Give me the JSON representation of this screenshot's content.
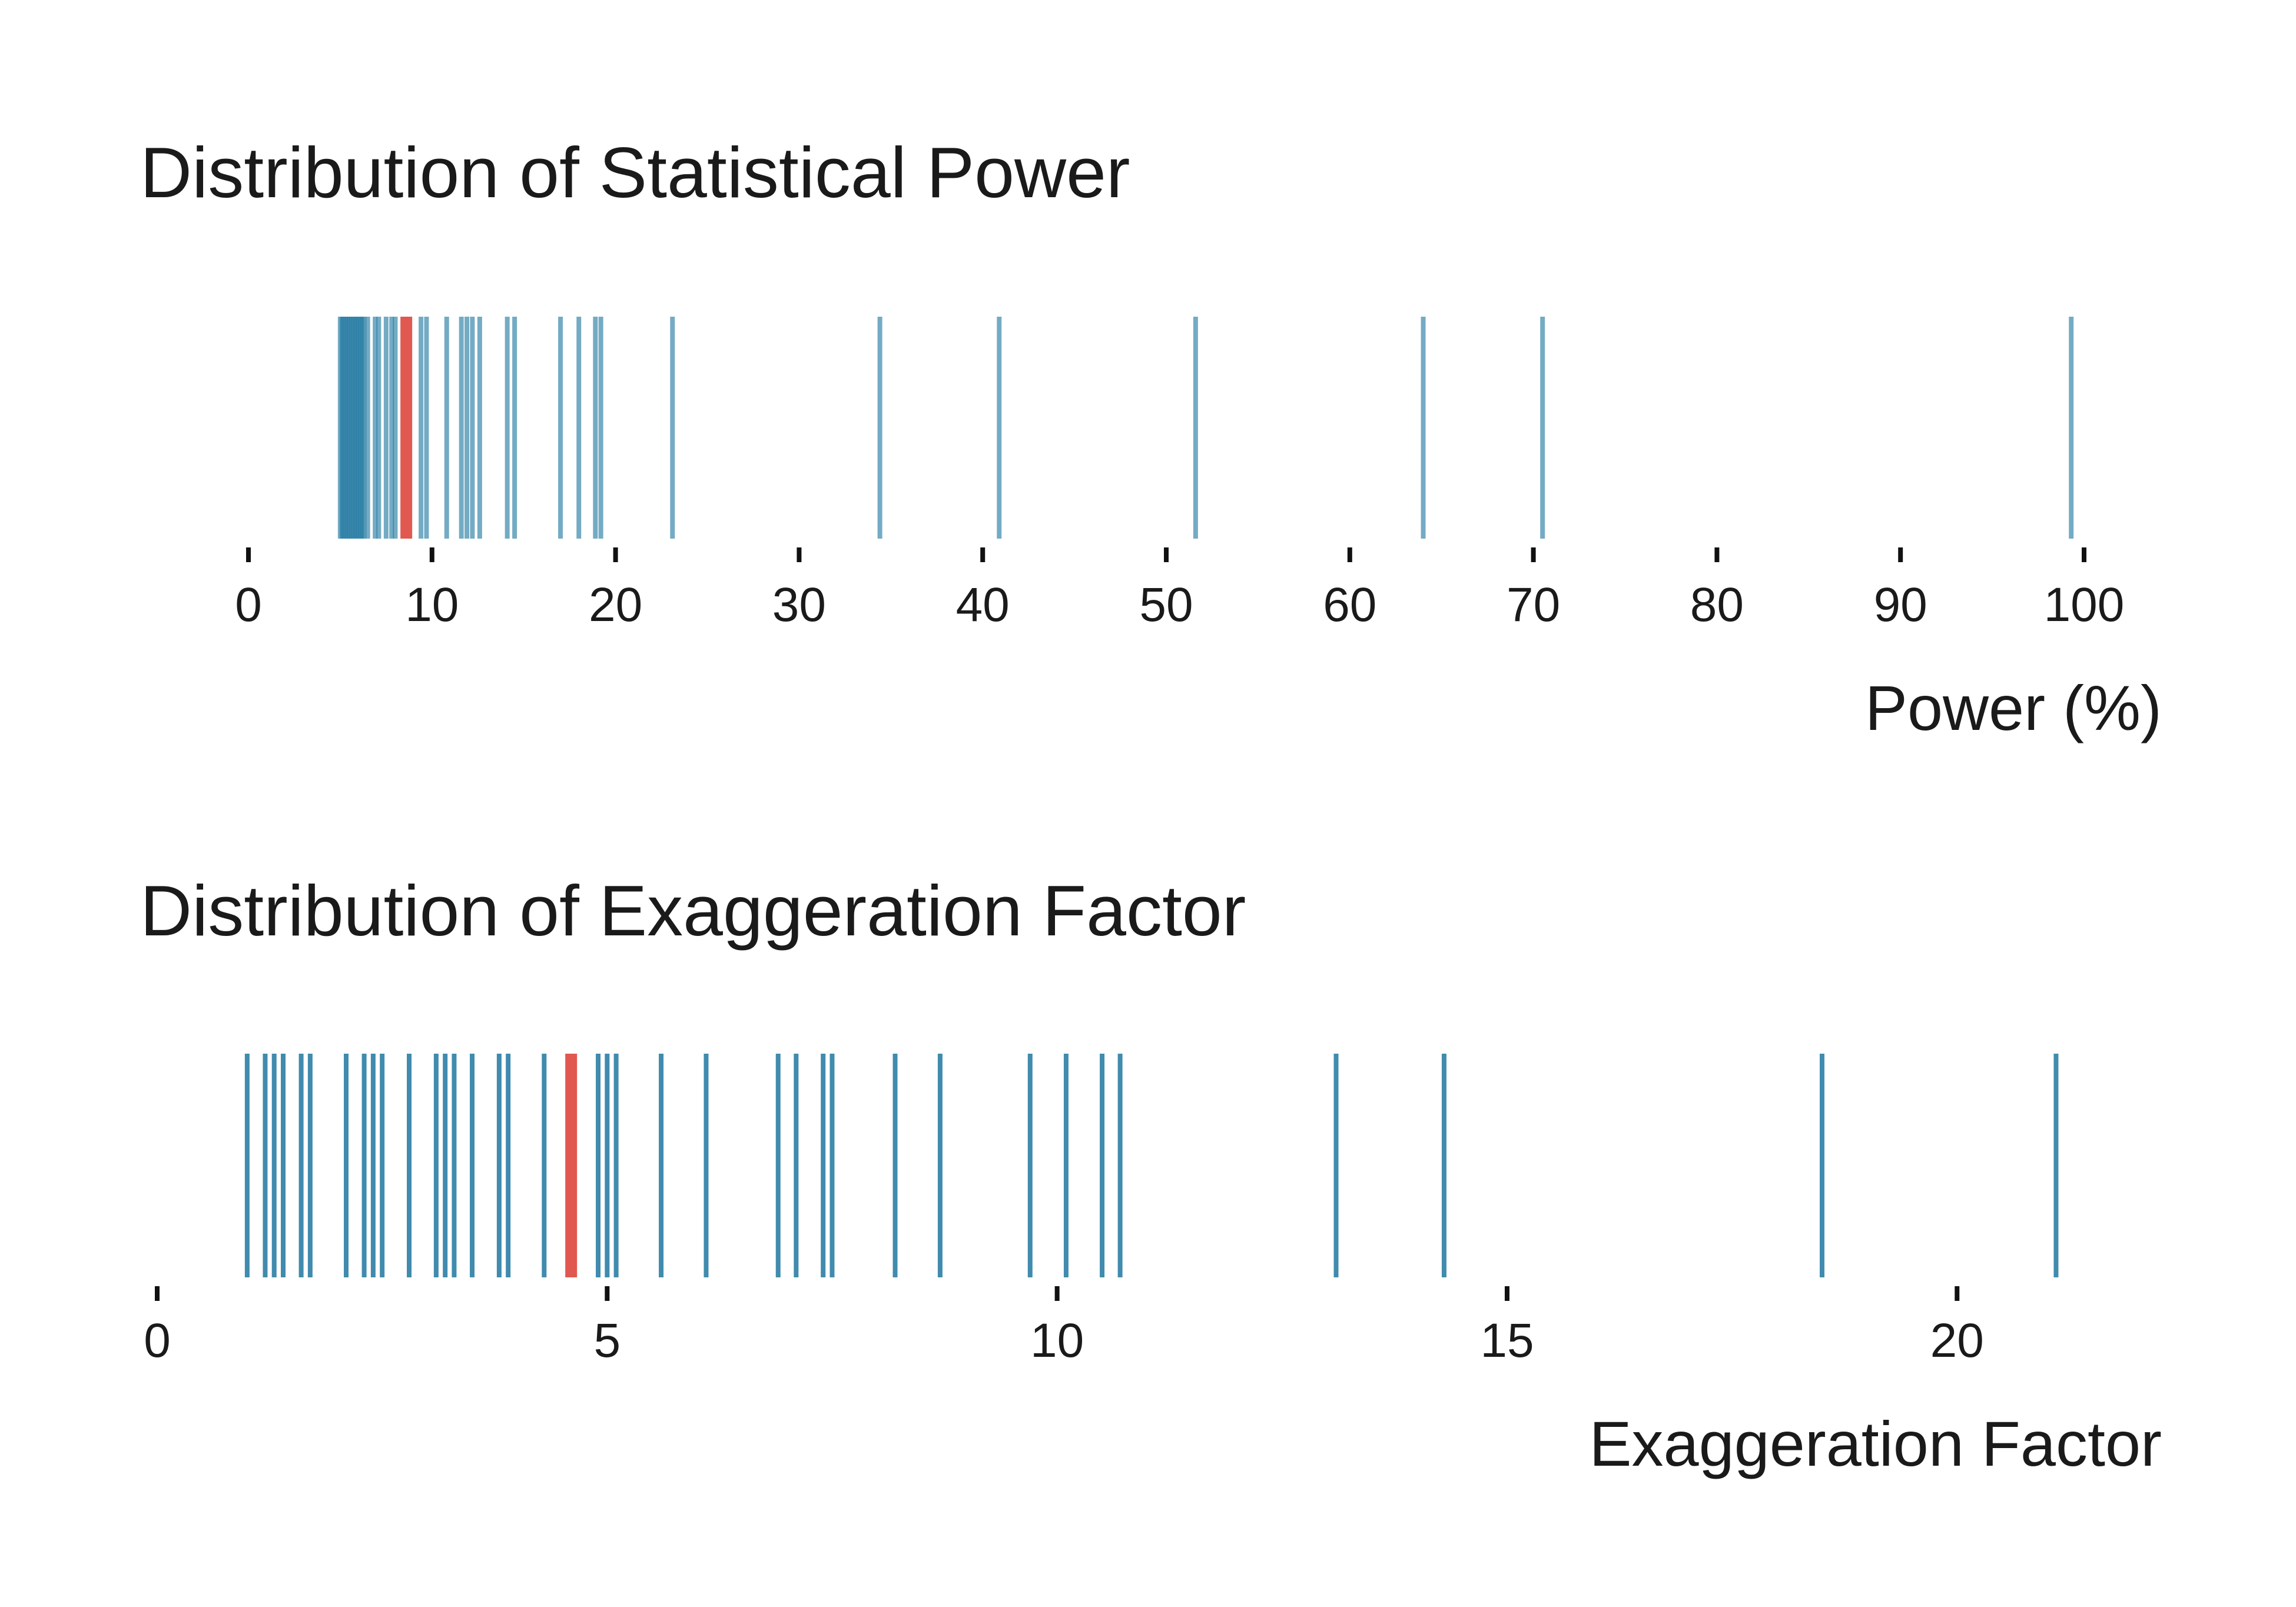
{
  "chart_data": [
    {
      "type": "rug",
      "title": "Distribution of Statistical Power",
      "xlabel": "Power (%)",
      "xlim": [
        0,
        100
      ],
      "xticks": [
        0,
        10,
        20,
        30,
        40,
        50,
        60,
        70,
        80,
        90,
        100
      ],
      "color": "#1f77a0",
      "highlight_color": "#e0584f",
      "values": [
        5.0,
        5.1,
        5.2,
        5.3,
        5.4,
        5.5,
        5.6,
        5.7,
        5.8,
        5.9,
        6.0,
        6.1,
        6.2,
        6.3,
        6.5,
        6.9,
        7.1,
        7.5,
        7.8,
        8.0,
        9.4,
        9.7,
        10.8,
        11.6,
        11.9,
        12.2,
        12.6,
        14.1,
        14.5,
        17.0,
        18.0,
        18.9,
        19.2,
        23.1,
        34.4,
        40.9,
        51.6,
        64.0,
        70.5,
        99.3
      ],
      "highlight": [
        8.6
      ]
    },
    {
      "type": "rug",
      "title": "Distribution of Exaggeration Factor",
      "xlabel": "Exaggeration Factor",
      "xlim": [
        0,
        22
      ],
      "xticks": [
        0,
        5,
        10,
        15,
        20
      ],
      "color": "#1f77a0",
      "highlight_color": "#e0584f",
      "values": [
        1.0,
        1.2,
        1.3,
        1.4,
        1.6,
        1.7,
        2.1,
        2.3,
        2.4,
        2.5,
        2.8,
        3.1,
        3.2,
        3.3,
        3.5,
        3.8,
        3.9,
        4.3,
        4.9,
        5.0,
        5.1,
        5.6,
        6.1,
        6.9,
        7.1,
        7.4,
        7.5,
        8.2,
        8.7,
        9.7,
        10.1,
        10.5,
        10.7,
        13.1,
        14.3,
        18.5,
        21.1
      ],
      "highlight": [
        4.6
      ]
    }
  ]
}
